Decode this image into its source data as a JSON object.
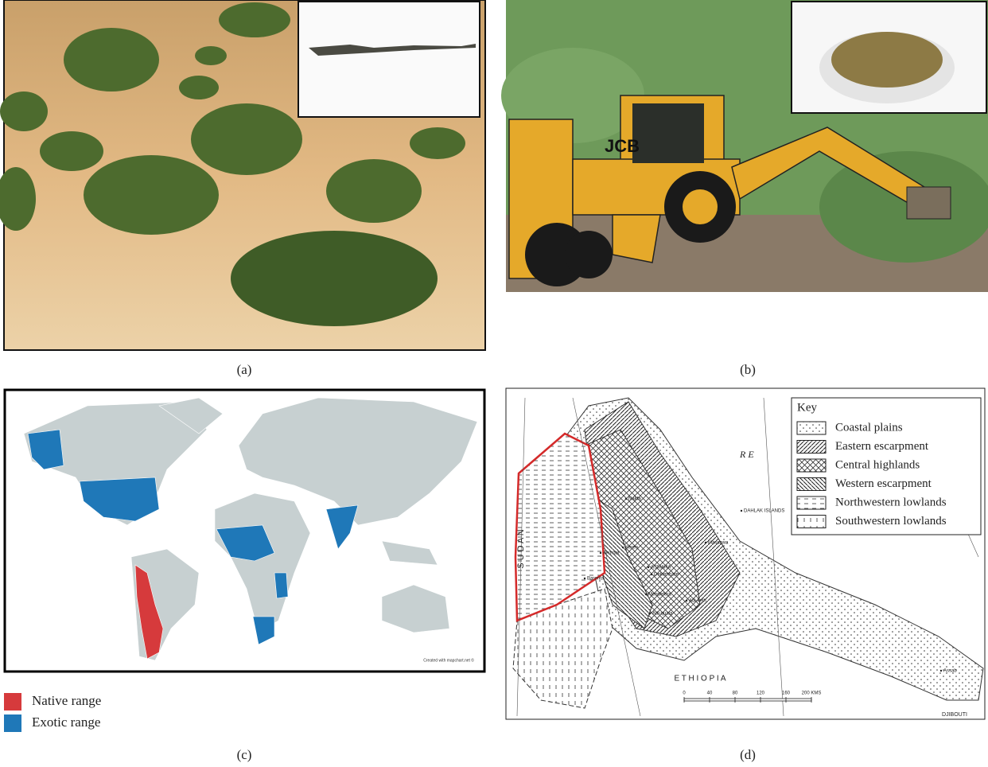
{
  "panels": [
    {
      "label": "(a)"
    },
    {
      "label": "(b)",
      "photo_text": "JCB"
    },
    {
      "label": "(c)",
      "credit": "Created with mapchart.net ©",
      "legend": [
        {
          "name": "Native range",
          "color": "#d63a3c"
        },
        {
          "name": "Exotic range",
          "color": "#1f78b8"
        }
      ]
    },
    {
      "label": "(d)",
      "key_title": "Key",
      "key": [
        "Coastal plains",
        "Eastern escarpment",
        "Central highlands",
        "Western escarpment",
        "Northwestern lowlands",
        "Southwestern lowlands"
      ],
      "country_sudan": "S U D A N",
      "country_ethiopia": "E T H I O P I A",
      "country_djibouti": "DJIBOUTI",
      "sea": "R E",
      "places": [
        "Nakfa",
        "Keren",
        "Akordat",
        "ASMARA",
        "Dekemhare",
        "Mendefera",
        "Adi-keih",
        "Adi-quala",
        "Barentu",
        "Massawa",
        "DAHLAK ISLANDS",
        "Assab"
      ],
      "scale": [
        "0",
        "40",
        "80",
        "120",
        "160",
        "200 KMS"
      ]
    }
  ]
}
